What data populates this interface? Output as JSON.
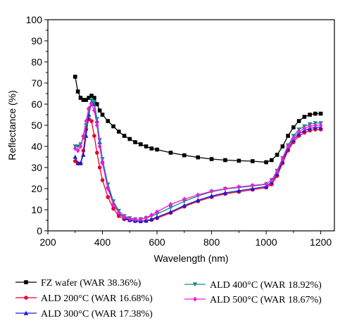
{
  "chart_data": {
    "type": "line",
    "xlabel": "Wavelength (nm)",
    "ylabel": "Reflectance (%)",
    "xlim": [
      200,
      1250
    ],
    "ylim": [
      0,
      100
    ],
    "xticks": [
      "200",
      "400",
      "600",
      "800",
      "1000",
      "1200"
    ],
    "yticks": [
      "0",
      "10",
      "20",
      "30",
      "40",
      "50",
      "60",
      "70",
      "80",
      "90",
      "100"
    ],
    "grid": false,
    "legend_position": "bottom",
    "series": [
      {
        "name": "FZ wafer (WAR 38.36%)",
        "color": "#000000",
        "marker": "square",
        "x": [
          300,
          310,
          320,
          330,
          340,
          350,
          360,
          370,
          380,
          390,
          400,
          420,
          440,
          460,
          480,
          500,
          520,
          540,
          560,
          580,
          600,
          650,
          700,
          750,
          800,
          850,
          900,
          950,
          1000,
          1020,
          1040,
          1060,
          1080,
          1100,
          1120,
          1140,
          1160,
          1180,
          1200
        ],
        "y": [
          73,
          66,
          63,
          62,
          62,
          63,
          64,
          63,
          60,
          57,
          55,
          52,
          49.5,
          47,
          45,
          43.5,
          42,
          41,
          40,
          39,
          38.5,
          37,
          35.8,
          34.8,
          34,
          33.5,
          33.2,
          33,
          32.5,
          33.5,
          36,
          40,
          45,
          49,
          52,
          54,
          55,
          55.5,
          55.5
        ]
      },
      {
        "name": "ALD 200°C (WAR 16.68%)",
        "color": "#e8002a",
        "marker": "circle",
        "x": [
          300,
          310,
          320,
          330,
          340,
          350,
          360,
          370,
          380,
          390,
          400,
          420,
          440,
          460,
          480,
          500,
          520,
          540,
          560,
          580,
          600,
          650,
          700,
          750,
          800,
          850,
          900,
          950,
          1000,
          1020,
          1040,
          1060,
          1080,
          1100,
          1120,
          1140,
          1160,
          1180,
          1200
        ],
        "y": [
          33,
          32,
          32,
          38,
          48,
          53,
          52,
          45,
          37,
          30,
          24,
          16,
          10.5,
          7,
          5.5,
          5,
          4.6,
          4.5,
          4.7,
          5.2,
          6,
          8.5,
          11.5,
          14,
          16,
          17.5,
          18.5,
          19.5,
          20.5,
          22,
          26,
          32,
          38,
          42,
          45,
          46.5,
          47.5,
          48,
          48
        ]
      },
      {
        "name": "ALD 300°C (WAR 17.38%)",
        "color": "#1a1ad6",
        "marker": "triangle-up",
        "x": [
          300,
          310,
          320,
          330,
          340,
          350,
          360,
          370,
          380,
          390,
          400,
          420,
          440,
          460,
          480,
          500,
          520,
          540,
          560,
          580,
          600,
          650,
          700,
          750,
          800,
          850,
          900,
          950,
          1000,
          1020,
          1040,
          1060,
          1080,
          1100,
          1120,
          1140,
          1160,
          1180,
          1200
        ],
        "y": [
          35,
          32,
          32,
          36,
          45,
          55,
          61,
          60,
          52,
          42,
          33,
          21,
          13,
          8.5,
          6,
          5.2,
          4.8,
          4.6,
          4.8,
          5.5,
          6.5,
          9,
          12,
          14.5,
          16.5,
          18,
          19,
          20,
          21,
          23,
          27,
          33,
          39,
          43,
          46,
          47.5,
          48.5,
          49,
          49
        ]
      },
      {
        "name": "ALD 400°C (WAR 18.92%)",
        "color": "#1a8a8a",
        "marker": "triangle-down",
        "x": [
          300,
          310,
          320,
          330,
          340,
          350,
          360,
          370,
          380,
          390,
          400,
          420,
          440,
          460,
          480,
          500,
          520,
          540,
          560,
          580,
          600,
          650,
          700,
          750,
          800,
          850,
          900,
          950,
          1000,
          1020,
          1040,
          1060,
          1080,
          1100,
          1120,
          1140,
          1160,
          1180,
          1200
        ],
        "y": [
          40,
          40,
          41,
          44,
          50,
          57,
          62,
          61,
          53,
          43,
          34,
          22,
          14,
          9.5,
          7,
          6,
          5.5,
          5.5,
          6,
          7,
          8,
          11,
          14,
          16.5,
          18.5,
          19.8,
          20.5,
          21.2,
          22,
          24,
          28.5,
          34.5,
          40.5,
          45,
          48,
          49.5,
          50.5,
          51,
          51
        ]
      },
      {
        "name": "ALD 500°C (WAR 18.67%)",
        "color": "#e81ed8",
        "marker": "diamond",
        "x": [
          300,
          310,
          320,
          330,
          340,
          350,
          360,
          370,
          380,
          390,
          400,
          420,
          440,
          460,
          480,
          500,
          520,
          540,
          560,
          580,
          600,
          650,
          700,
          750,
          800,
          850,
          900,
          950,
          1000,
          1020,
          1040,
          1060,
          1080,
          1100,
          1120,
          1140,
          1160,
          1180,
          1200
        ],
        "y": [
          39,
          38,
          40,
          45,
          52,
          58,
          60,
          57,
          50,
          40,
          32,
          20,
          12.5,
          8.5,
          6.5,
          5.8,
          5.4,
          5.5,
          6.2,
          7.5,
          9,
          12.5,
          15,
          17,
          18.8,
          20,
          20.8,
          21.5,
          22.2,
          24,
          28,
          34,
          40,
          44,
          47,
          48.5,
          49.5,
          50,
          50
        ]
      }
    ]
  }
}
